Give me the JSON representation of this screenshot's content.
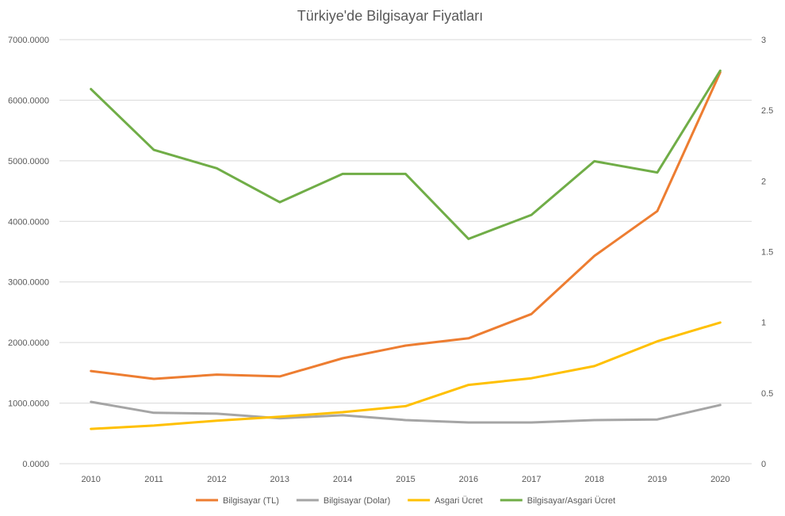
{
  "chart_data": {
    "type": "line",
    "title": "Türkiye'de Bilgisayar Fiyatları",
    "categories": [
      "2010",
      "2011",
      "2012",
      "2013",
      "2014",
      "2015",
      "2016",
      "2017",
      "2018",
      "2019",
      "2020"
    ],
    "y_left": {
      "range": [
        0,
        7000
      ],
      "ticks": [
        "0.0000",
        "1000.0000",
        "2000.0000",
        "3000.0000",
        "4000.0000",
        "5000.0000",
        "6000.0000",
        "7000.0000"
      ]
    },
    "y_right": {
      "range": [
        0,
        3
      ],
      "ticks": [
        "0",
        "0.5",
        "1",
        "1.5",
        "2",
        "2.5",
        "3"
      ]
    },
    "grid": true,
    "legend_position": "bottom",
    "series": [
      {
        "name": "Bilgisayar (TL)",
        "axis": "left",
        "color": "#ED7D31",
        "values": [
          1530,
          1400,
          1470,
          1440,
          1740,
          1950,
          2070,
          2470,
          3430,
          4170,
          6460
        ]
      },
      {
        "name": "Bilgisayar (Dolar)",
        "axis": "left",
        "color": "#A5A5A5",
        "values": [
          1020,
          840,
          825,
          750,
          800,
          720,
          680,
          680,
          720,
          730,
          970
        ]
      },
      {
        "name": "Asgari Ücret",
        "axis": "left",
        "color": "#FFC000",
        "values": [
          575,
          630,
          710,
          775,
          850,
          950,
          1300,
          1410,
          1610,
          2020,
          2330
        ]
      },
      {
        "name": "Bilgisayar/Asgari Ücret",
        "axis": "right",
        "color": "#70AD47",
        "values": [
          2.65,
          2.22,
          2.09,
          1.85,
          2.05,
          2.05,
          1.59,
          1.76,
          2.14,
          2.06,
          2.78
        ]
      }
    ]
  }
}
